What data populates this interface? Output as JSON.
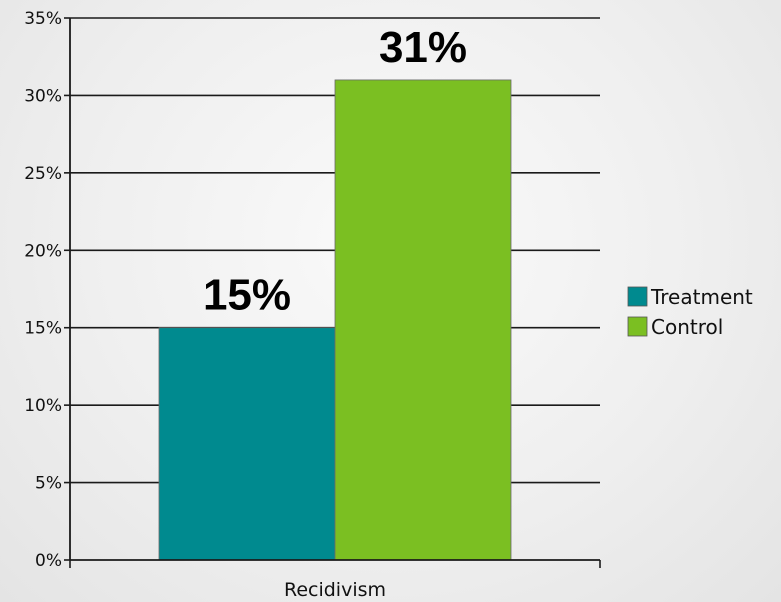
{
  "chart_data": {
    "type": "bar",
    "title": "",
    "xlabel": "",
    "ylabel": "",
    "categories": [
      "Recidivism"
    ],
    "series": [
      {
        "name": "Treatment",
        "values": [
          15
        ],
        "color": "#008a8f",
        "label": "15%"
      },
      {
        "name": "Control",
        "values": [
          31
        ],
        "color": "#7bbf22",
        "label": "31%"
      }
    ],
    "ylim": [
      0,
      35
    ],
    "yticks": [
      0,
      5,
      10,
      15,
      20,
      25,
      30,
      35
    ],
    "ytick_labels": [
      "0%",
      "5%",
      "10%",
      "15%",
      "20%",
      "25%",
      "30%",
      "35%"
    ],
    "grid": true,
    "legend_position": "right"
  }
}
